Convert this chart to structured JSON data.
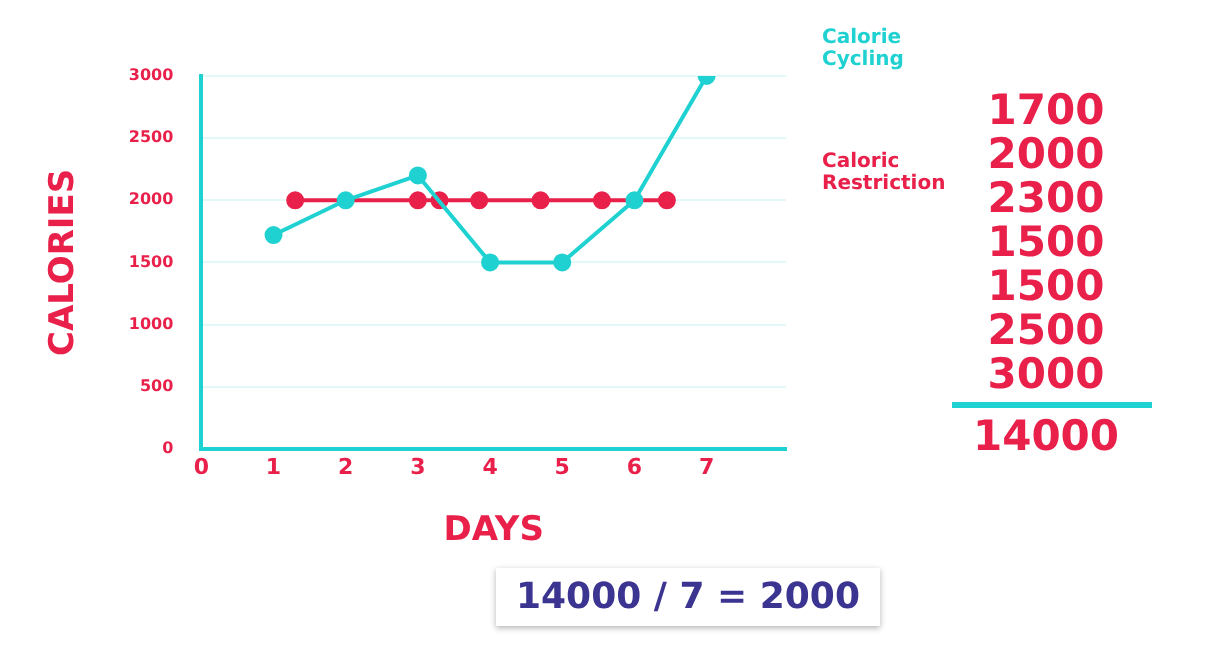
{
  "chart_data": {
    "type": "line",
    "xlabel": "DAYS",
    "ylabel": "CALORIES",
    "xlim": [
      0,
      8.1
    ],
    "xticks": [
      0,
      1,
      2,
      3,
      4,
      5,
      6,
      7
    ],
    "ylim": [
      0,
      3000
    ],
    "yticks": [
      0,
      500,
      1000,
      1500,
      2000,
      2500,
      3000
    ],
    "grid": "y",
    "marker": "circle",
    "line_style": "solid",
    "series": [
      {
        "name": "Calorie Cycling",
        "color": "#1fd1d1",
        "x": [
          1,
          2,
          3,
          4,
          5,
          6,
          7
        ],
        "values": [
          1720,
          2000,
          2200,
          1500,
          1500,
          2000,
          3000
        ]
      },
      {
        "name": "Caloric Restriction",
        "color": "#e8204a",
        "x": [
          1.3,
          2,
          3,
          3.3,
          3.85,
          4.7,
          5.55,
          6,
          6.45
        ],
        "values": [
          2000,
          null,
          2000,
          2000,
          2000,
          2000,
          2000,
          null,
          2000
        ]
      }
    ],
    "annotations": [
      "1700",
      "2000",
      "2300",
      "1500",
      "1500",
      "2500",
      "3000",
      "14000",
      "14000 / 7 = 2000"
    ]
  }
}
